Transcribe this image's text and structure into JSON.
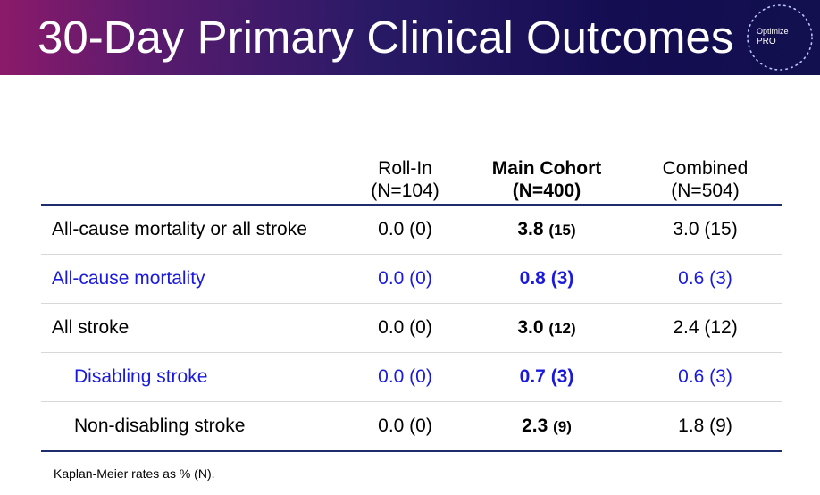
{
  "title": "30-Day Primary Clinical Outcomes",
  "logo": {
    "line1": "Optimize",
    "line2": "PRO"
  },
  "columns": [
    {
      "line1": "Roll-In",
      "line2": "(N=104)"
    },
    {
      "line1": "Main Cohort",
      "line2": "(N=400)"
    },
    {
      "line1": "Combined",
      "line2": "(N=504)"
    }
  ],
  "rows": [
    {
      "label": "All-cause mortality or all stroke",
      "roll_in": "0.0 (0)",
      "main_value": "3.8",
      "main_n": "(15)",
      "combined": "3.0 (15)"
    },
    {
      "label": "All-cause mortality",
      "roll_in": "0.0 (0)",
      "main_value": "0.8",
      "main_n": "(3)",
      "combined": "0.6 (3)"
    },
    {
      "label": "All stroke",
      "roll_in": "0.0 (0)",
      "main_value": "3.0",
      "main_n": "(12)",
      "combined": "2.4 (12)"
    },
    {
      "label": "Disabling stroke",
      "roll_in": "0.0 (0)",
      "main_value": "0.7",
      "main_n": "(3)",
      "combined": "0.6 (3)"
    },
    {
      "label": "Non-disabling stroke",
      "roll_in": "0.0 (0)",
      "main_value": "2.3",
      "main_n": "(9)",
      "combined": "1.8 (9)"
    }
  ],
  "footnote": "Kaplan-Meier rates as % (N).",
  "colors": {
    "banner_start": "#8c1a6a",
    "banner_end": "#12104e",
    "highlight_text": "#1a1adc",
    "rule": "#1f2d6e"
  }
}
